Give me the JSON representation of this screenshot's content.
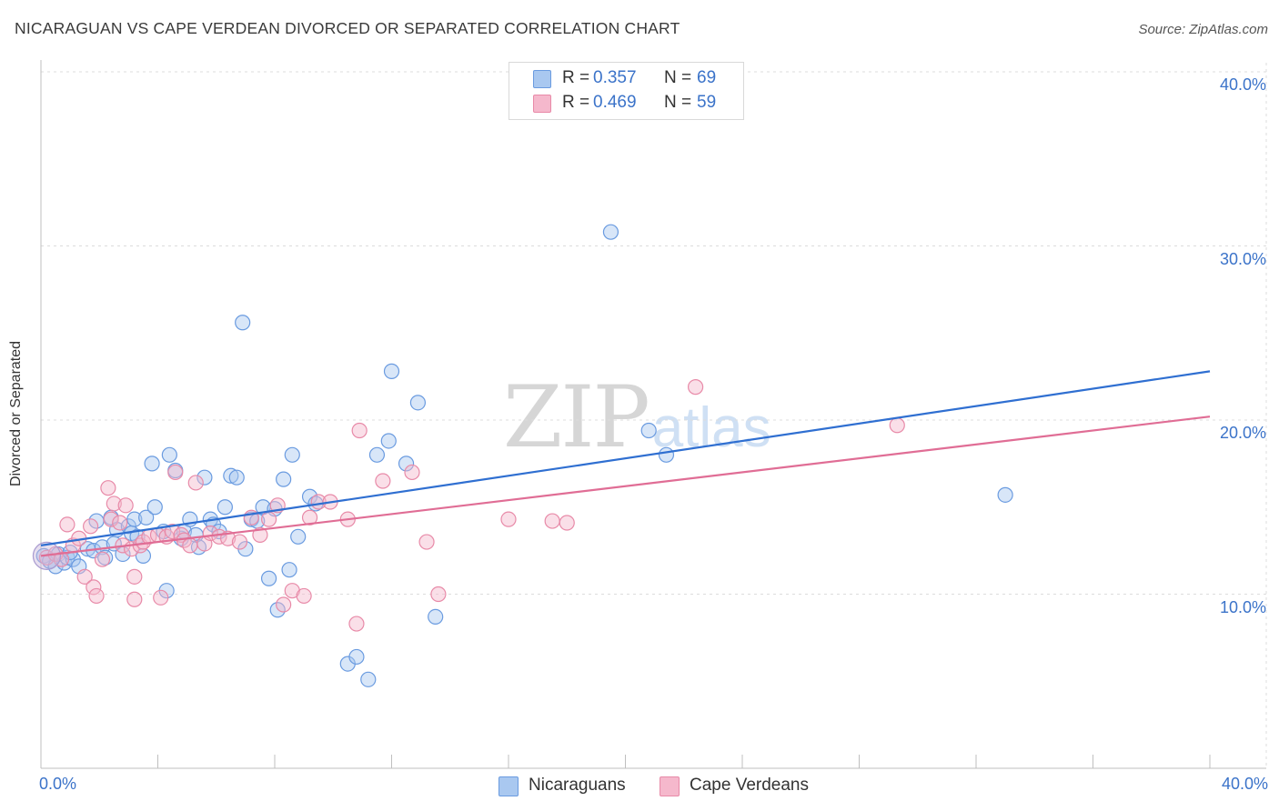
{
  "title": "NICARAGUAN VS CAPE VERDEAN DIVORCED OR SEPARATED CORRELATION CHART",
  "source": "Source: ZipAtlas.com",
  "watermark": {
    "zip": "ZIP",
    "atlas": "atlas"
  },
  "legend": {
    "rows": [
      {
        "r_label": "R =",
        "r_value": "0.357",
        "n_label": "N =",
        "n_value": "69"
      },
      {
        "r_label": "R =",
        "r_value": "0.469",
        "n_label": "N =",
        "n_value": "59"
      }
    ]
  },
  "bottom_legend": {
    "series1": "Nicaraguans",
    "series2": "Cape Verdeans"
  },
  "colors": {
    "blue_fill": "#a9c8f0",
    "blue_stroke": "#6a9be0",
    "blue_line": "#2f6fd1",
    "pink_fill": "#f5b8cc",
    "pink_stroke": "#e88aa8",
    "pink_line": "#e06d95",
    "tick_text": "#3b73c9"
  },
  "chart_data": {
    "type": "scatter",
    "title": "NICARAGUAN VS CAPE VERDEAN DIVORCED OR SEPARATED CORRELATION CHART",
    "ylabel": "Divorced or Separated",
    "xlabel": "",
    "xlim": [
      0,
      40
    ],
    "ylim": [
      0,
      40
    ],
    "x_tick_labels": [
      "0.0%",
      "40.0%"
    ],
    "y_tick_labels": [
      "10.0%",
      "20.0%",
      "30.0%",
      "40.0%"
    ],
    "y_ticks": [
      10,
      20,
      30,
      40
    ],
    "grid": true,
    "legend_position": "top-center",
    "series": [
      {
        "name": "Nicaraguans",
        "color": "#a9c8f0",
        "trend": [
          [
            0,
            12.8
          ],
          [
            40,
            22.8
          ]
        ],
        "points": [
          [
            0.1,
            12.2
          ],
          [
            0.3,
            11.9
          ],
          [
            0.5,
            11.6
          ],
          [
            0.6,
            12.3
          ],
          [
            0.8,
            11.8
          ],
          [
            0.9,
            12.1
          ],
          [
            1.1,
            12.0
          ],
          [
            1.3,
            11.6
          ],
          [
            1.6,
            12.6
          ],
          [
            1.8,
            12.5
          ],
          [
            1.9,
            14.2
          ],
          [
            2.1,
            12.7
          ],
          [
            2.2,
            12.1
          ],
          [
            2.4,
            14.4
          ],
          [
            2.5,
            12.9
          ],
          [
            2.6,
            13.7
          ],
          [
            2.8,
            12.3
          ],
          [
            3.0,
            13.9
          ],
          [
            3.1,
            13.5
          ],
          [
            3.2,
            14.3
          ],
          [
            3.3,
            13.3
          ],
          [
            3.5,
            12.2
          ],
          [
            3.6,
            14.4
          ],
          [
            3.8,
            17.5
          ],
          [
            3.9,
            15.0
          ],
          [
            4.2,
            13.6
          ],
          [
            4.3,
            10.2
          ],
          [
            4.4,
            18.0
          ],
          [
            4.6,
            17.1
          ],
          [
            4.8,
            13.2
          ],
          [
            4.9,
            13.6
          ],
          [
            5.1,
            14.3
          ],
          [
            5.3,
            13.4
          ],
          [
            5.4,
            12.7
          ],
          [
            5.6,
            16.7
          ],
          [
            5.8,
            14.3
          ],
          [
            5.9,
            14.0
          ],
          [
            6.1,
            13.6
          ],
          [
            6.3,
            15.0
          ],
          [
            6.5,
            16.8
          ],
          [
            6.7,
            16.7
          ],
          [
            6.9,
            25.6
          ],
          [
            7.0,
            12.6
          ],
          [
            7.2,
            14.3
          ],
          [
            7.4,
            14.2
          ],
          [
            7.6,
            15.0
          ],
          [
            7.8,
            10.9
          ],
          [
            8.0,
            14.9
          ],
          [
            8.1,
            9.1
          ],
          [
            8.3,
            16.6
          ],
          [
            8.5,
            11.4
          ],
          [
            8.6,
            18.0
          ],
          [
            8.8,
            13.3
          ],
          [
            9.2,
            15.6
          ],
          [
            9.4,
            15.2
          ],
          [
            10.5,
            6.0
          ],
          [
            10.8,
            6.4
          ],
          [
            11.2,
            5.1
          ],
          [
            11.5,
            18.0
          ],
          [
            11.9,
            18.8
          ],
          [
            12.0,
            22.8
          ],
          [
            12.5,
            17.5
          ],
          [
            12.9,
            21.0
          ],
          [
            13.5,
            8.7
          ],
          [
            19.5,
            30.8
          ],
          [
            20.8,
            19.4
          ],
          [
            21.4,
            18.0
          ],
          [
            33.0,
            15.7
          ],
          [
            1.0,
            12.4
          ]
        ]
      },
      {
        "name": "Cape Verdeans",
        "color": "#f5b8cc",
        "trend": [
          [
            0,
            12.2
          ],
          [
            40,
            20.2
          ]
        ],
        "points": [
          [
            0.2,
            12.1
          ],
          [
            0.5,
            12.3
          ],
          [
            0.7,
            12.0
          ],
          [
            0.9,
            14.0
          ],
          [
            1.1,
            12.8
          ],
          [
            1.3,
            13.2
          ],
          [
            1.5,
            11.0
          ],
          [
            1.7,
            13.9
          ],
          [
            1.8,
            10.4
          ],
          [
            1.9,
            9.9
          ],
          [
            2.1,
            12.0
          ],
          [
            2.3,
            16.1
          ],
          [
            2.4,
            14.3
          ],
          [
            2.5,
            15.2
          ],
          [
            2.7,
            14.1
          ],
          [
            2.8,
            12.8
          ],
          [
            2.9,
            15.1
          ],
          [
            3.1,
            12.6
          ],
          [
            3.2,
            11.0
          ],
          [
            3.2,
            9.7
          ],
          [
            3.4,
            12.8
          ],
          [
            3.5,
            13.0
          ],
          [
            3.7,
            13.3
          ],
          [
            4.0,
            13.4
          ],
          [
            4.1,
            9.8
          ],
          [
            4.3,
            13.3
          ],
          [
            4.5,
            13.6
          ],
          [
            4.6,
            17.0
          ],
          [
            4.8,
            13.4
          ],
          [
            4.9,
            13.1
          ],
          [
            5.1,
            12.8
          ],
          [
            5.3,
            16.4
          ],
          [
            5.6,
            12.9
          ],
          [
            5.8,
            13.5
          ],
          [
            6.1,
            13.3
          ],
          [
            6.4,
            13.2
          ],
          [
            6.8,
            13.0
          ],
          [
            7.2,
            14.4
          ],
          [
            7.5,
            13.4
          ],
          [
            7.8,
            14.3
          ],
          [
            8.1,
            15.1
          ],
          [
            8.3,
            9.4
          ],
          [
            8.6,
            10.2
          ],
          [
            9.0,
            9.9
          ],
          [
            9.2,
            14.4
          ],
          [
            9.5,
            15.3
          ],
          [
            9.9,
            15.3
          ],
          [
            10.5,
            14.3
          ],
          [
            10.8,
            8.3
          ],
          [
            10.9,
            19.4
          ],
          [
            11.7,
            16.5
          ],
          [
            12.7,
            17.0
          ],
          [
            13.2,
            13.0
          ],
          [
            13.6,
            10.0
          ],
          [
            16.0,
            14.3
          ],
          [
            17.5,
            14.2
          ],
          [
            18.0,
            14.1
          ],
          [
            22.4,
            21.9
          ],
          [
            29.3,
            19.7
          ]
        ]
      }
    ]
  }
}
